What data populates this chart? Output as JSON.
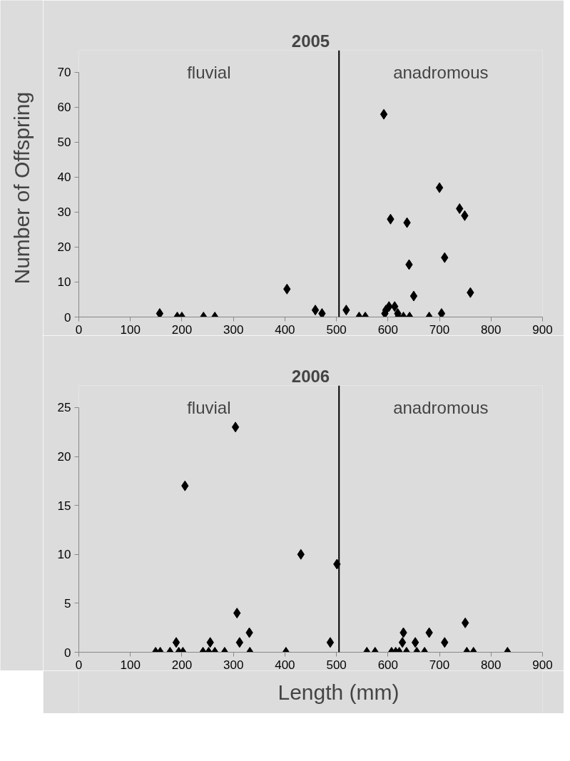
{
  "chart_data": [
    {
      "type": "scatter",
      "title": "2005",
      "ylabel": "Number of Offspring",
      "marker": "diamond",
      "grid": false,
      "annotations": [
        "fluvial",
        "anadromous"
      ],
      "ref_lines": [
        {
          "axis": "x",
          "value": 505,
          "label": null,
          "color": "#000000"
        }
      ],
      "xlim": [
        0,
        900
      ],
      "xticks": [
        0,
        100,
        200,
        300,
        400,
        500,
        600,
        700,
        800,
        900
      ],
      "ylim": [
        0,
        70
      ],
      "yticks": [
        0,
        10,
        20,
        30,
        40,
        50,
        60,
        70
      ],
      "series": [
        {
          "color": "#000000",
          "x": [
            157,
            191,
            200,
            242,
            264,
            404,
            459,
            472,
            519,
            544,
            556,
            592,
            605,
            637,
            641,
            650,
            700,
            710,
            739,
            749,
            760,
            680,
            704,
            594,
            602,
            613,
            596,
            619,
            620,
            630,
            642
          ],
          "values": [
            1,
            0,
            0,
            0,
            0,
            8,
            2,
            1,
            2,
            0,
            0,
            58,
            28,
            27,
            15,
            6,
            37,
            17,
            31,
            29,
            7,
            0,
            1,
            1,
            3,
            3,
            2,
            1,
            0,
            0,
            0
          ]
        }
      ]
    },
    {
      "type": "scatter",
      "title": "2006",
      "xlabel": "Length (mm)",
      "marker": "diamond",
      "grid": false,
      "annotations": [
        "fluvial",
        "anadromous"
      ],
      "ref_lines": [
        {
          "axis": "x",
          "value": 505,
          "label": null,
          "color": "#000000"
        }
      ],
      "xlim": [
        0,
        900
      ],
      "xticks": [
        0,
        100,
        200,
        300,
        400,
        500,
        600,
        700,
        800,
        900
      ],
      "ylim": [
        0,
        25
      ],
      "yticks": [
        0,
        5,
        10,
        15,
        20,
        25
      ],
      "series": [
        {
          "color": "#000000",
          "x": [
            149,
            158,
            177,
            189,
            194,
            202,
            206,
            241,
            255,
            252,
            264,
            283,
            304,
            307,
            312,
            331,
            332,
            402,
            431,
            488,
            501,
            559,
            575,
            607,
            615,
            630,
            628,
            622,
            636,
            653,
            656,
            671,
            680,
            710,
            750,
            753,
            766,
            832
          ],
          "values": [
            0,
            0,
            0,
            1,
            0,
            0,
            17,
            0,
            1,
            0,
            0,
            0,
            23,
            4,
            1,
            2,
            0,
            0,
            10,
            1,
            9,
            0,
            0,
            0,
            0,
            2,
            1,
            0,
            0,
            1,
            0,
            0,
            2,
            1,
            3,
            0,
            0,
            0
          ]
        }
      ]
    }
  ]
}
